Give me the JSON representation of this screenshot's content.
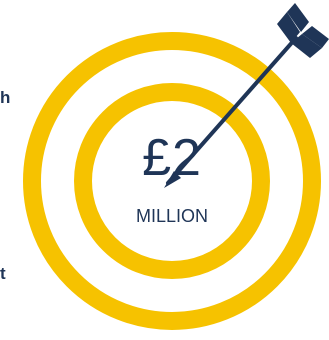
{
  "left_edge_text": {
    "line1": "h",
    "line2": "t"
  },
  "target": {
    "amount": "£2",
    "unit": "MILLION"
  },
  "colors": {
    "ring": "#f6c200",
    "navy": "#1f3557",
    "background": "#ffffff"
  },
  "icons": {
    "target": "target-rings-icon",
    "arrow": "arrow-icon"
  }
}
